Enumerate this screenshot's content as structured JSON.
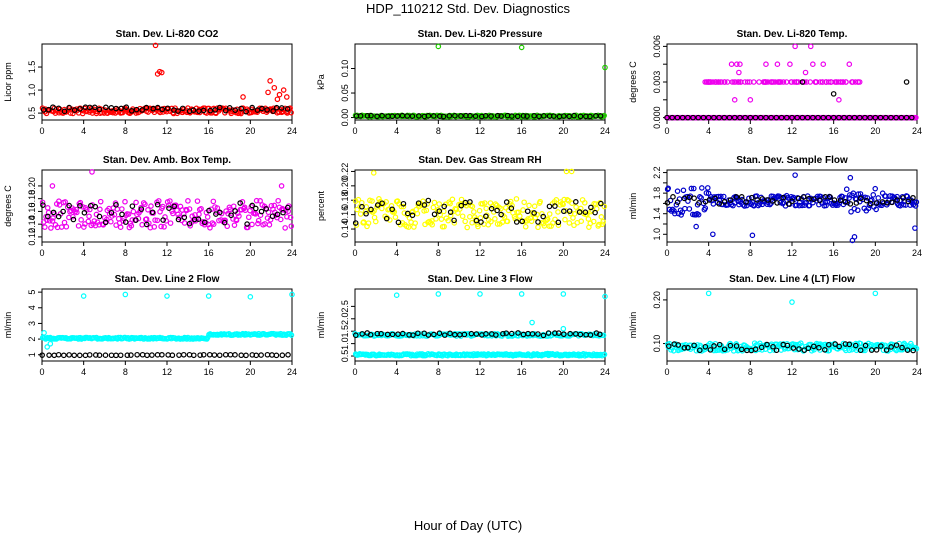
{
  "figure": {
    "title": "HDP_110212  Std. Dev. Diagnostics",
    "xlabel": "Hour of Day (UTC)",
    "black_color": "#000000"
  },
  "chart_data": [
    {
      "type": "scatter",
      "title": "Stan. Dev. Li-820 CO2",
      "ylabel": "Licor ppm",
      "color": "#ff0000",
      "xlim": [
        0,
        24
      ],
      "ylim": [
        0.35,
        2.0
      ],
      "xticks": [
        0,
        4,
        8,
        12,
        16,
        20,
        24
      ],
      "yticks": [
        0.5,
        1.0,
        1.5
      ],
      "ytick_labels": [
        "0.5",
        "1.0",
        "1.5"
      ],
      "base": 0.55,
      "spread": 0.06,
      "black_base": 0.58,
      "black_spread": 0.05,
      "outliers": [
        [
          10.9,
          1.97
        ],
        [
          11.1,
          1.35
        ],
        [
          11.3,
          1.4
        ],
        [
          11.5,
          1.38
        ],
        [
          19.3,
          0.85
        ],
        [
          21.9,
          1.2
        ],
        [
          22.3,
          1.05
        ],
        [
          21.7,
          0.95
        ],
        [
          22.8,
          0.9
        ],
        [
          23.2,
          1.0
        ],
        [
          23.5,
          0.85
        ],
        [
          22.6,
          0.8
        ]
      ]
    },
    {
      "type": "scatter",
      "title": "Stan. Dev. Li-820 Pressure",
      "ylabel": "kPa",
      "color": "#22cc00",
      "xlim": [
        0,
        24
      ],
      "ylim": [
        -0.005,
        0.15
      ],
      "xticks": [
        0,
        4,
        8,
        12,
        16,
        20,
        24
      ],
      "yticks": [
        0.0,
        0.05,
        0.1
      ],
      "ytick_labels": [
        "0.00",
        "0.05",
        "0.10"
      ],
      "base": 0.003,
      "spread": 0.0015,
      "black_base": 0.003,
      "black_spread": 0.001,
      "outliers": [
        [
          8.0,
          0.145
        ],
        [
          16.0,
          0.143
        ],
        [
          24.0,
          0.102
        ]
      ]
    },
    {
      "type": "scatter",
      "title": "Stan. Dev. Li-820 Temp.",
      "ylabel": "degrees C",
      "color": "#ee00ee",
      "xlim": [
        0,
        24
      ],
      "ylim": [
        -0.0002,
        0.0062
      ],
      "xticks": [
        0,
        4,
        8,
        12,
        16,
        20,
        24
      ],
      "yticks": [
        0.0,
        0.0015,
        0.003,
        0.0045,
        0.006
      ],
      "ytick_labels": [
        "0.000",
        "",
        "0.003",
        "",
        "0.006"
      ],
      "levels_mode": true,
      "outliers": [
        [
          6.2,
          0.0045
        ],
        [
          6.7,
          0.0045
        ],
        [
          7.0,
          0.0045
        ],
        [
          6.9,
          0.0038
        ],
        [
          9.5,
          0.0045
        ],
        [
          10.6,
          0.0045
        ],
        [
          11.8,
          0.0045
        ],
        [
          12.3,
          0.006
        ],
        [
          13.8,
          0.006
        ],
        [
          14.0,
          0.0045
        ],
        [
          13.3,
          0.0038
        ],
        [
          6.5,
          0.0015
        ],
        [
          8.0,
          0.0015
        ],
        [
          15.0,
          0.0045
        ],
        [
          17.5,
          0.0045
        ],
        [
          16.5,
          0.0015
        ]
      ],
      "black_outliers": [
        [
          16.0,
          0.002
        ],
        [
          23.0,
          0.003
        ],
        [
          13.0,
          0.003
        ]
      ]
    },
    {
      "type": "scatter",
      "title": "Stan. Dev. Amb. Box Temp.",
      "ylabel": "degrees C",
      "color": "#ee00ee",
      "xlim": [
        0,
        24
      ],
      "ylim": [
        0.112,
        0.225
      ],
      "xticks": [
        0,
        4,
        8,
        12,
        16,
        20,
        24
      ],
      "yticks": [
        0.12,
        0.14,
        0.16,
        0.18,
        0.2
      ],
      "ytick_labels": [
        "0.12",
        "0.14",
        "0.16",
        "0.18",
        "0.20"
      ],
      "base": 0.155,
      "spread": 0.022,
      "black_base": 0.157,
      "black_spread": 0.018,
      "outliers": [
        [
          4.8,
          0.222
        ],
        [
          1.0,
          0.2
        ],
        [
          23.0,
          0.2
        ]
      ]
    },
    {
      "type": "scatter",
      "title": "Stan. Dev. Gas Stream RH",
      "ylabel": "percent",
      "color": "#ffff00",
      "xlim": [
        0,
        24
      ],
      "ylim": [
        0.122,
        0.222
      ],
      "xticks": [
        0,
        4,
        8,
        12,
        16,
        20,
        24
      ],
      "yticks": [
        0.14,
        0.16,
        0.18,
        0.2,
        0.22
      ],
      "ytick_labels": [
        "0.14",
        "0.16",
        "0.18",
        "0.20",
        "0.22"
      ],
      "base": 0.162,
      "spread": 0.02,
      "black_base": 0.165,
      "black_spread": 0.017,
      "outliers": [
        [
          1.8,
          0.218
        ],
        [
          20.3,
          0.22
        ],
        [
          20.8,
          0.22
        ]
      ]
    },
    {
      "type": "scatter",
      "title": "Stan. Dev. Sample Flow",
      "ylabel": "ml/min",
      "color": "#0000cc",
      "xlim": [
        0,
        24
      ],
      "ylim": [
        0.85,
        2.25
      ],
      "xticks": [
        0,
        4,
        8,
        12,
        16,
        20,
        24
      ],
      "yticks": [
        1.0,
        1.2,
        1.4,
        1.6,
        1.8,
        2.0,
        2.2
      ],
      "ytick_labels": [
        "1.0",
        "",
        "1.4",
        "",
        "1.8",
        "",
        "2.2"
      ],
      "base": 1.65,
      "spread": 0.1,
      "black_base": 1.66,
      "black_spread": 0.07,
      "noisy_ranges": [
        [
          0,
          4,
          0.28
        ],
        [
          17,
          21,
          0.25
        ]
      ],
      "outliers": [
        [
          8.2,
          0.98
        ],
        [
          17.8,
          0.88
        ],
        [
          18.0,
          0.95
        ],
        [
          12.3,
          2.15
        ],
        [
          17.6,
          2.1
        ],
        [
          23.8,
          1.12
        ],
        [
          4.4,
          1.0
        ],
        [
          2.8,
          1.15
        ]
      ]
    },
    {
      "type": "scatter",
      "title": "Stan. Dev. Line 2 Flow",
      "ylabel": "ml/min",
      "color": "#00ffff",
      "xlim": [
        0,
        24
      ],
      "ylim": [
        0.6,
        5.2
      ],
      "xticks": [
        0,
        4,
        8,
        12,
        16,
        20,
        24
      ],
      "yticks": [
        1,
        2,
        3,
        4,
        5
      ],
      "ytick_labels": [
        "1",
        "2",
        "3",
        "4",
        "5"
      ],
      "base": 2.05,
      "spread": 0.05,
      "step_after": 16,
      "step_base": 2.3,
      "black_base": 0.98,
      "black_spread": 0.02,
      "outliers": [
        [
          4.0,
          4.75
        ],
        [
          8.0,
          4.85
        ],
        [
          12.0,
          4.75
        ],
        [
          16.0,
          4.75
        ],
        [
          20.0,
          4.7
        ],
        [
          24.0,
          4.85
        ],
        [
          0.5,
          1.5
        ],
        [
          0.8,
          1.7
        ],
        [
          0.2,
          2.4
        ]
      ]
    },
    {
      "type": "scatter",
      "title": "Stan. Dev. Line 3 Flow",
      "ylabel": "ml/min",
      "color": "#00ffff",
      "xlim": [
        0,
        24
      ],
      "ylim": [
        0.3,
        3.2
      ],
      "xticks": [
        0,
        4,
        8,
        12,
        16,
        20,
        24
      ],
      "yticks": [
        0.5,
        1.0,
        1.5,
        2.0,
        2.5
      ],
      "ytick_labels": [
        "0.5",
        "1.0",
        "1.5",
        "2.0",
        "2.5"
      ],
      "base": 0.55,
      "spread": 0.04,
      "band2_base": 1.35,
      "band2_spread": 0.05,
      "black_base": 1.38,
      "black_spread": 0.05,
      "outliers": [
        [
          4.0,
          2.95
        ],
        [
          8.0,
          3.0
        ],
        [
          12.0,
          3.0
        ],
        [
          16.0,
          3.0
        ],
        [
          20.0,
          3.0
        ],
        [
          24.0,
          2.9
        ],
        [
          17.0,
          1.85
        ],
        [
          18.5,
          0.6
        ],
        [
          20.0,
          1.6
        ]
      ]
    },
    {
      "type": "scatter",
      "title": "Stan. Dev. Line 4 (LT) Flow",
      "ylabel": "ml/min",
      "color": "#00ffff",
      "xlim": [
        0,
        24
      ],
      "ylim": [
        0.06,
        0.225
      ],
      "xticks": [
        0,
        4,
        8,
        12,
        16,
        20,
        24
      ],
      "yticks": [
        0.1,
        0.2
      ],
      "ytick_labels": [
        "0.10",
        "0.20"
      ],
      "base": 0.092,
      "spread": 0.009,
      "black_base": 0.092,
      "black_spread": 0.008,
      "outliers": [
        [
          4.0,
          0.215
        ],
        [
          12.0,
          0.195
        ],
        [
          20.0,
          0.215
        ]
      ]
    }
  ]
}
